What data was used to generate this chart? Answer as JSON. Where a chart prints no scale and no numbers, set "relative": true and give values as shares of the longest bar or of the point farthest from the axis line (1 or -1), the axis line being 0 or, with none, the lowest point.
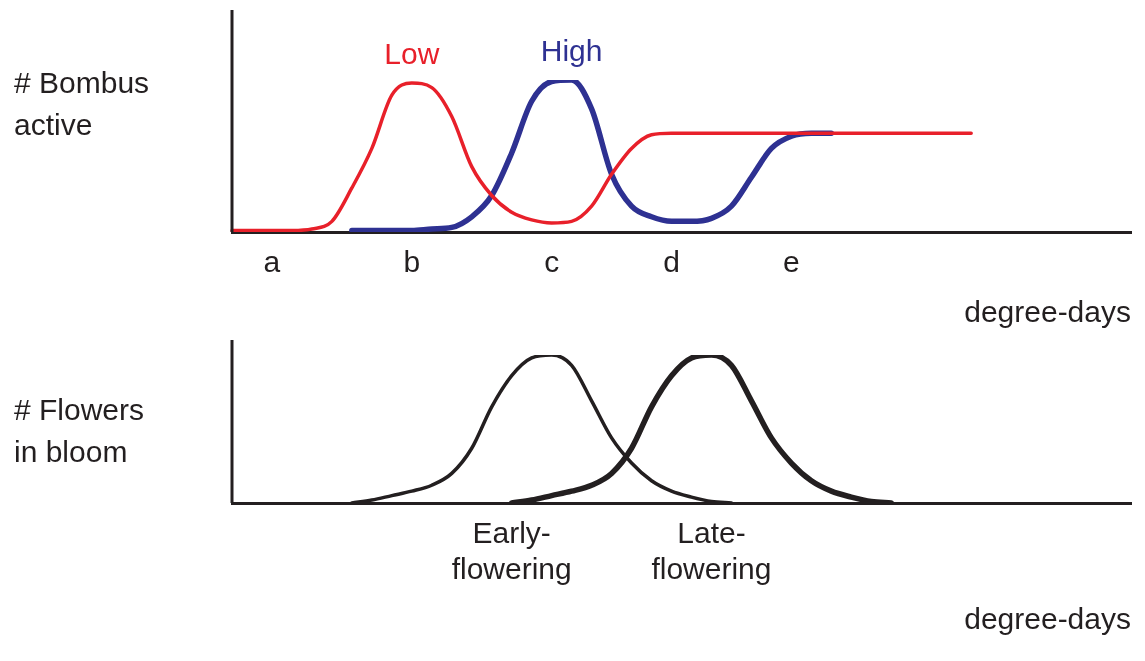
{
  "chart_data": [
    {
      "type": "line",
      "relative": true,
      "xlabel": "degree-days",
      "ylabel": "# Bombus active",
      "categories": [
        null,
        null,
        "a",
        null,
        null,
        null,
        null,
        null,
        null,
        "b",
        null,
        null,
        null,
        null,
        null,
        null,
        "c",
        null,
        null,
        null,
        null,
        null,
        "d",
        null,
        null,
        null,
        null,
        null,
        "e",
        null,
        null,
        null,
        null,
        null,
        null,
        null,
        null,
        null,
        null,
        null,
        null,
        null,
        null,
        null,
        null,
        null
      ],
      "series": [
        {
          "name": "Low",
          "color": "#e8202a",
          "values": [
            0.01,
            0.01,
            0.01,
            0.01,
            0.02,
            0.07,
            0.29,
            0.55,
            0.9,
            0.98,
            0.95,
            0.76,
            0.43,
            0.24,
            0.13,
            0.08,
            0.06,
            0.07,
            0.17,
            0.38,
            0.55,
            0.64,
            0.65,
            0.65,
            0.65,
            0.65,
            0.65,
            0.65,
            0.65,
            0.65,
            0.65,
            0.65,
            0.65,
            0.65,
            0.65,
            0.65,
            0.65,
            0.65,
            null,
            null,
            null,
            null,
            null,
            null,
            null,
            null
          ]
        },
        {
          "name": "High",
          "color": "#2e3192",
          "values": [
            null,
            null,
            null,
            null,
            null,
            null,
            0.01,
            0.01,
            0.01,
            0.01,
            0.02,
            0.03,
            0.1,
            0.24,
            0.52,
            0.86,
            0.99,
            1,
            0.81,
            0.38,
            0.17,
            0.1,
            0.07,
            0.07,
            0.09,
            0.17,
            0.36,
            0.55,
            0.63,
            0.65,
            0.65,
            null,
            null,
            null,
            null,
            null,
            null,
            null,
            null,
            null,
            null,
            null,
            null,
            null,
            null,
            null
          ]
        }
      ]
    },
    {
      "type": "line",
      "relative": true,
      "xlabel": "degree-days",
      "ylabel": "# Flowers in bloom",
      "categories": [
        null,
        null,
        null,
        null,
        null,
        null,
        null,
        null,
        null,
        null,
        null,
        null,
        null,
        null,
        "Early-flowering",
        null,
        null,
        null,
        null,
        null,
        null,
        null,
        null,
        null,
        "Late-flowering",
        null,
        null,
        null,
        null,
        null,
        null,
        null,
        null,
        null,
        null,
        null,
        null,
        null,
        null,
        null,
        null,
        null,
        null,
        null,
        null,
        null
      ],
      "series": [
        {
          "color": "#231f20",
          "values": [
            null,
            null,
            null,
            null,
            null,
            null,
            0,
            0.02,
            0.05,
            0.08,
            0.12,
            0.2,
            0.37,
            0.65,
            0.86,
            0.98,
            1,
            0.93,
            0.69,
            0.44,
            0.27,
            0.15,
            0.08,
            0.04,
            0.01,
            0,
            null,
            null,
            null,
            null,
            null,
            null,
            null,
            null,
            null,
            null,
            null,
            null,
            null,
            null,
            null,
            null,
            null,
            null,
            null,
            null
          ]
        },
        {
          "color": "#231f20",
          "values": [
            null,
            null,
            null,
            null,
            null,
            null,
            null,
            null,
            null,
            null,
            null,
            null,
            null,
            null,
            0,
            0.02,
            0.05,
            0.08,
            0.12,
            0.2,
            0.37,
            0.65,
            0.86,
            0.98,
            1,
            0.93,
            0.69,
            0.44,
            0.27,
            0.15,
            0.08,
            0.04,
            0.01,
            0,
            null,
            null,
            null,
            null,
            null,
            null,
            null,
            null,
            null,
            null,
            null,
            null
          ]
        }
      ]
    }
  ]
}
